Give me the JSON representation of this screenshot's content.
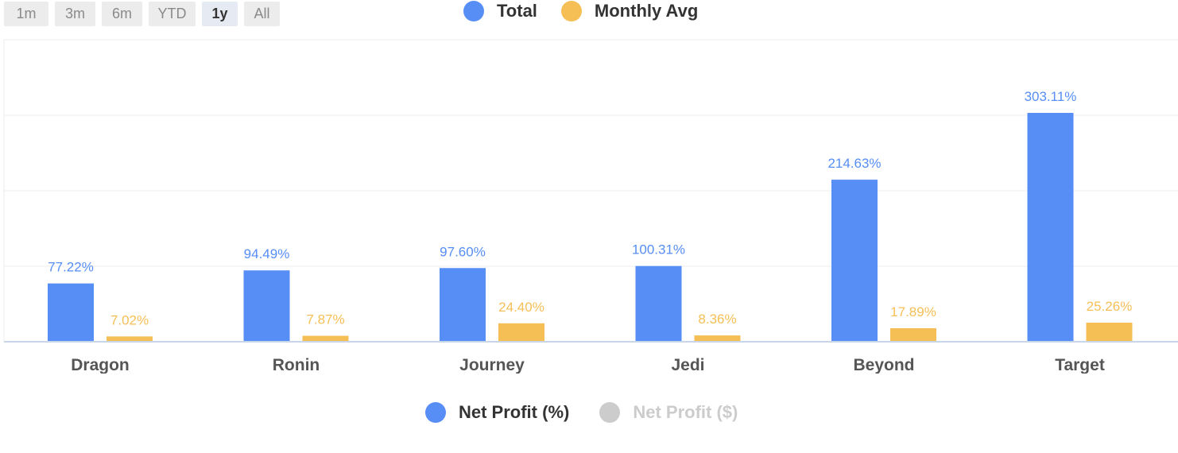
{
  "range_buttons": [
    {
      "label": "1m",
      "active": false
    },
    {
      "label": "3m",
      "active": false
    },
    {
      "label": "6m",
      "active": false
    },
    {
      "label": "YTD",
      "active": false
    },
    {
      "label": "1y",
      "active": true
    },
    {
      "label": "All",
      "active": false
    }
  ],
  "legend_top": [
    {
      "label": "Total",
      "color": "#568ef5"
    },
    {
      "label": "Monthly Avg",
      "color": "#f6bf56"
    }
  ],
  "legend_bottom": [
    {
      "label": "Net Profit (%)",
      "color": "#568ef5",
      "active": true
    },
    {
      "label": "Net Profit ($)",
      "color": "#cccccc",
      "active": false
    }
  ],
  "chart_data": {
    "type": "bar",
    "categories": [
      "Dragon",
      "Ronin",
      "Journey",
      "Jedi",
      "Beyond",
      "Target"
    ],
    "series": [
      {
        "name": "Total",
        "color": "#568ef5",
        "values": [
          77.22,
          94.49,
          97.6,
          100.31,
          214.63,
          303.11
        ],
        "labels": [
          "77.22%",
          "94.49%",
          "97.60%",
          "100.31%",
          "214.63%",
          "303.11%"
        ]
      },
      {
        "name": "Monthly Avg",
        "color": "#f6bf56",
        "values": [
          7.02,
          7.87,
          24.4,
          8.36,
          17.89,
          25.26
        ],
        "labels": [
          "7.02%",
          "7.87%",
          "24.40%",
          "8.36%",
          "17.89%",
          "25.26%"
        ]
      }
    ],
    "ylim": [
      0,
      400
    ],
    "grid": true,
    "legend": "top"
  }
}
